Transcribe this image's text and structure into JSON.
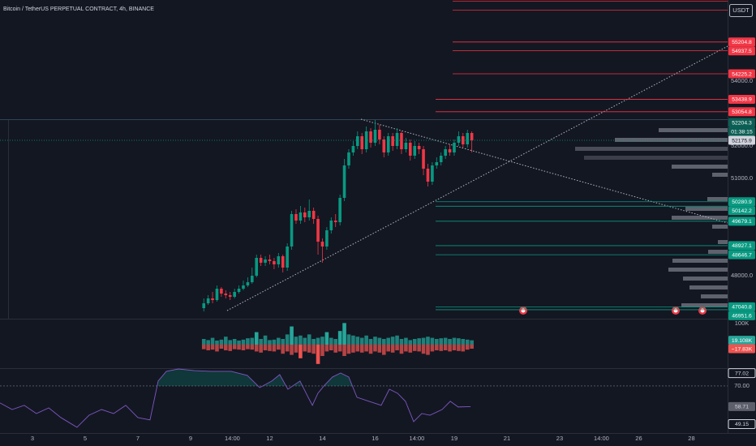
{
  "header": {
    "title": "Bitcoin / TetherUS PERPETUAL CONTRACT, 4h, BINANCE",
    "currency": "USDT"
  },
  "chart_data": [
    {
      "type": "candlestick",
      "up_color": "#089981",
      "down_color": "#f23645",
      "x": [
        9.5,
        9.667,
        9.833,
        10,
        10.167,
        10.333,
        10.5,
        10.667,
        10.833,
        11,
        11.167,
        11.333,
        11.5,
        11.667,
        11.833,
        12,
        12.167,
        12.333,
        12.5,
        12.667,
        12.833,
        13,
        13.167,
        13.333,
        13.5,
        13.667,
        13.833,
        14,
        14.167,
        14.333,
        14.5,
        14.667,
        14.833,
        15,
        15.167,
        15.333,
        15.5,
        15.667,
        15.833,
        16,
        16.167,
        16.333,
        16.5,
        16.667,
        16.833,
        17,
        17.167,
        17.333,
        17.5,
        17.667,
        17.833,
        18,
        18.167,
        18.333,
        18.5,
        18.667,
        18.833,
        19,
        19.167,
        19.333,
        19.5,
        19.667
      ],
      "open": [
        47000,
        47150,
        47300,
        47250,
        47600,
        47450,
        47400,
        47350,
        47500,
        47600,
        47700,
        47800,
        48000,
        48550,
        48400,
        48500,
        48450,
        48350,
        48600,
        48250,
        48900,
        49900,
        49700,
        49950,
        49800,
        50000,
        49750,
        49050,
        48900,
        49400,
        49700,
        49650,
        50400,
        51400,
        51800,
        52000,
        52300,
        51900,
        52450,
        52100,
        52500,
        52200,
        51800,
        52300,
        52000,
        52400,
        51900,
        52100,
        51700,
        52000,
        51900,
        51300,
        50900,
        51400,
        51500,
        51700,
        51900,
        51800,
        52100,
        52300,
        52050,
        52400
      ],
      "high": [
        47300,
        47400,
        47500,
        47700,
        47650,
        47550,
        47500,
        47600,
        47700,
        47850,
        47950,
        48250,
        48650,
        48650,
        48600,
        48650,
        48550,
        48700,
        48650,
        49000,
        50000,
        50050,
        50150,
        50100,
        50350,
        50100,
        49850,
        49150,
        49500,
        49800,
        49900,
        50500,
        51600,
        51900,
        52150,
        52450,
        52400,
        52600,
        52550,
        52800,
        52650,
        52300,
        52400,
        52400,
        52550,
        52450,
        52250,
        52200,
        52150,
        52100,
        52000,
        51450,
        51500,
        51650,
        51800,
        52000,
        52050,
        52200,
        52450,
        52400,
        52500,
        52450
      ],
      "low": [
        46900,
        47100,
        47150,
        47200,
        47350,
        47300,
        47250,
        47300,
        47450,
        47550,
        47650,
        47750,
        47950,
        48300,
        48300,
        48350,
        48200,
        48250,
        48100,
        48150,
        48800,
        49600,
        49600,
        49650,
        49700,
        49600,
        48650,
        48400,
        48800,
        49300,
        49500,
        49550,
        50300,
        51300,
        51700,
        51900,
        51750,
        51800,
        51950,
        52000,
        52050,
        51650,
        51700,
        51850,
        51900,
        51750,
        51800,
        51550,
        51600,
        51750,
        51100,
        50750,
        50800,
        51300,
        51400,
        51600,
        51700,
        51700,
        52000,
        51950,
        51950,
        51800
      ],
      "close": [
        47150,
        47300,
        47250,
        47600,
        47450,
        47400,
        47350,
        47500,
        47600,
        47700,
        47800,
        48000,
        48550,
        48400,
        48500,
        48450,
        48350,
        48600,
        48250,
        48900,
        49900,
        49700,
        49950,
        49800,
        50000,
        49750,
        49050,
        48900,
        49400,
        49700,
        49650,
        50400,
        51400,
        51800,
        52000,
        52300,
        51900,
        52450,
        52100,
        52500,
        52200,
        51800,
        52300,
        52000,
        52400,
        51900,
        52100,
        51700,
        52000,
        51900,
        51300,
        50900,
        51400,
        51500,
        51700,
        51900,
        51800,
        52100,
        52300,
        52050,
        52400,
        52175.9
      ],
      "ylim": [
        46675,
        56500
      ],
      "yticks": [
        {
          "value": 54000,
          "label": "54000.0"
        },
        {
          "value": 52000,
          "label": "52000.0"
        },
        {
          "value": 51000,
          "label": "51000.0"
        },
        {
          "value": 48000,
          "label": "48000.0"
        }
      ],
      "xlim": [
        1.77,
        29.37
      ],
      "xticks": [
        3,
        5,
        7,
        9,
        {
          "value": 10.583,
          "label": "14:00"
        },
        12,
        14,
        16,
        {
          "value": 17.583,
          "label": "14:00"
        },
        19,
        21,
        23,
        {
          "value": 24.583,
          "label": "14:00"
        },
        26,
        28
      ],
      "levels": [
        {
          "value": 55204.8,
          "color": "#f23645"
        },
        {
          "value": 54937.5,
          "color": "#f23645"
        },
        {
          "value": 54225.2,
          "color": "#f23645"
        },
        {
          "value": 53438.9,
          "color": "#f23645"
        },
        {
          "value": 53054.8,
          "color": "#f23645"
        },
        {
          "value": 50280.9,
          "color": "#089981"
        },
        {
          "value": 50142.2,
          "color": "#089981"
        },
        {
          "value": 49679.1,
          "color": "#089981"
        },
        {
          "value": 48927.1,
          "color": "#089981"
        },
        {
          "value": 48646.7,
          "color": "#089981"
        },
        {
          "value": 47040.8,
          "color": "#089981"
        },
        {
          "value": 46951.6,
          "color": "#089981"
        }
      ],
      "price_tag": {
        "value": 52204.3,
        "countdown": "01:38:15"
      },
      "last_price": 52175.9
    },
    {
      "type": "bar",
      "ylim": [
        -107,
        107
      ],
      "yticks": [
        {
          "value": 100,
          "label": "100K"
        }
      ],
      "series": [
        {
          "color": "#26a69a",
          "values": [
            25,
            20,
            30,
            18,
            22,
            35,
            20,
            25,
            18,
            22,
            28,
            30,
            55,
            25,
            40,
            20,
            22,
            30,
            25,
            45,
            80,
            35,
            40,
            30,
            45,
            25,
            30,
            35,
            55,
            30,
            25,
            60,
            95,
            45,
            40,
            35,
            30,
            40,
            25,
            35,
            30,
            25,
            30,
            35,
            40,
            25,
            30,
            20,
            25,
            28,
            30,
            35,
            30,
            25,
            28,
            30,
            25,
            30,
            28,
            25,
            22,
            19.108
          ],
          "value_labels": [
            null,
            null,
            null,
            null,
            null,
            null,
            null,
            null,
            null,
            null,
            null,
            null,
            null,
            null,
            null,
            null,
            null,
            null,
            null,
            null,
            null,
            null,
            null,
            null,
            null,
            null,
            null,
            null,
            null,
            null,
            null,
            null,
            null,
            null,
            null,
            null,
            null,
            null,
            null,
            null,
            null,
            null,
            null,
            null,
            null,
            null,
            null,
            null,
            null,
            null,
            null,
            null,
            null,
            null,
            null,
            null,
            null,
            null,
            null,
            null,
            null,
            "19.108K"
          ]
        },
        {
          "color": "#ef5350",
          "values": [
            -20,
            -25,
            -22,
            -30,
            -18,
            -25,
            -28,
            -20,
            -22,
            -25,
            -20,
            -22,
            -30,
            -35,
            -25,
            -28,
            -30,
            -22,
            -40,
            -30,
            -45,
            -35,
            -60,
            -30,
            -35,
            -40,
            -85,
            -50,
            -30,
            -25,
            -35,
            -30,
            -50,
            -40,
            -35,
            -30,
            -35,
            -30,
            -40,
            -30,
            -35,
            -45,
            -30,
            -35,
            -25,
            -40,
            -30,
            -35,
            -28,
            -30,
            -40,
            -45,
            -30,
            -25,
            -28,
            -25,
            -30,
            -25,
            -28,
            -30,
            -22,
            -17.83
          ],
          "value_labels": [
            null,
            null,
            null,
            null,
            null,
            null,
            null,
            null,
            null,
            null,
            null,
            null,
            null,
            null,
            null,
            null,
            null,
            null,
            null,
            null,
            null,
            null,
            null,
            null,
            null,
            null,
            null,
            null,
            null,
            null,
            null,
            null,
            null,
            null,
            null,
            null,
            null,
            null,
            null,
            null,
            null,
            null,
            null,
            null,
            null,
            null,
            null,
            null,
            null,
            null,
            null,
            null,
            null,
            null,
            null,
            null,
            null,
            null,
            null,
            null,
            null,
            "−17.83K"
          ]
        }
      ]
    },
    {
      "type": "line",
      "color": "#7e57c2",
      "x": [
        1.77,
        2.23,
        2.69,
        3.15,
        3.62,
        4.08,
        4.69,
        5.15,
        5.62,
        6.08,
        6.54,
        7.0,
        7.46,
        7.77,
        8.08,
        8.54,
        9.15,
        9.77,
        10.54,
        11.15,
        11.62,
        12.08,
        12.38,
        12.69,
        13.15,
        13.46,
        13.62,
        13.83,
        14.08,
        14.38,
        14.69,
        15.0,
        15.31,
        15.77,
        16.23,
        16.54,
        16.85,
        17.15,
        17.46,
        17.77,
        18.08,
        18.54,
        18.85,
        19.15,
        19.62
      ],
      "values": [
        60.7,
        57.1,
        59.4,
        54.9,
        58.0,
        52.7,
        47.4,
        54.0,
        57.1,
        54.9,
        59.4,
        52.7,
        51.4,
        72.7,
        78.0,
        79.3,
        78.4,
        78.0,
        78.0,
        75.8,
        69.1,
        72.7,
        76.2,
        68.2,
        72.7,
        63.8,
        59.4,
        66.0,
        70.4,
        74.9,
        77.1,
        74.9,
        63.8,
        61.6,
        59.4,
        68.2,
        66.0,
        61.6,
        50.5,
        54.9,
        54.0,
        57.1,
        61.6,
        58.5,
        58.71
      ],
      "ylim": [
        43.8,
        79.3
      ],
      "yticks": [
        {
          "value": 70,
          "label": "70.00"
        }
      ],
      "price_labels": [
        77.02,
        58.71,
        49.15
      ]
    }
  ]
}
